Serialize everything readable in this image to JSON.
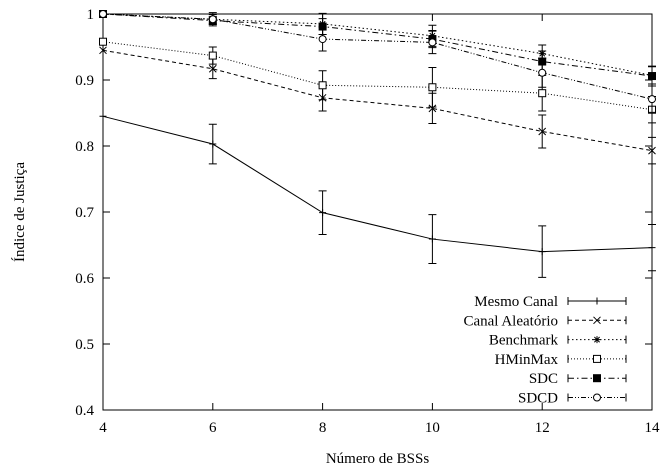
{
  "chart_data": {
    "type": "line",
    "title": "",
    "xlabel": "Número de BSSs",
    "ylabel": "Índice de Justiça",
    "x": [
      4,
      6,
      8,
      10,
      12,
      14
    ],
    "xlim": [
      4,
      14
    ],
    "ylim": [
      0.4,
      1.0
    ],
    "xticks": [
      4,
      6,
      8,
      10,
      12,
      14
    ],
    "yticks": [
      0.4,
      0.5,
      0.6,
      0.7,
      0.8,
      0.9,
      1
    ],
    "grid": false,
    "legend_position": "bottom-right",
    "series": [
      {
        "name": "Mesmo Canal",
        "marker": "plus",
        "dash": "solid",
        "values": [
          0.845,
          0.803,
          0.699,
          0.659,
          0.64,
          0.646
        ],
        "errors": [
          0.0,
          0.03,
          0.033,
          0.037,
          0.039,
          0.035
        ]
      },
      {
        "name": "Canal Aleatório",
        "marker": "x",
        "dash": "dashed",
        "values": [
          0.945,
          0.917,
          0.873,
          0.857,
          0.822,
          0.793
        ],
        "errors": [
          0.0,
          0.015,
          0.02,
          0.023,
          0.025,
          0.02
        ]
      },
      {
        "name": "Benchmark",
        "marker": "star",
        "dash": "dotted",
        "values": [
          1.0,
          0.992,
          0.985,
          0.967,
          0.94,
          0.907
        ],
        "errors": [
          0.0,
          0.01,
          0.016,
          0.016,
          0.013,
          0.013
        ]
      },
      {
        "name": "HMinMax",
        "marker": "open-square",
        "dash": "fine-dotted",
        "values": [
          0.958,
          0.937,
          0.892,
          0.889,
          0.88,
          0.855
        ],
        "errors": [
          0.0,
          0.013,
          0.022,
          0.03,
          0.027,
          0.02
        ]
      },
      {
        "name": "SDC",
        "marker": "filled-square",
        "dash": "dash-dot",
        "values": [
          1.0,
          0.99,
          0.981,
          0.962,
          0.928,
          0.906
        ],
        "errors": [
          0.0,
          0.006,
          0.012,
          0.013,
          0.016,
          0.015
        ]
      },
      {
        "name": "SDCD",
        "marker": "open-circle",
        "dash": "dash-dot-dot",
        "values": [
          1.0,
          0.992,
          0.962,
          0.957,
          0.911,
          0.871
        ],
        "errors": [
          0.0,
          0.007,
          0.018,
          0.017,
          0.022,
          0.02
        ]
      }
    ]
  }
}
